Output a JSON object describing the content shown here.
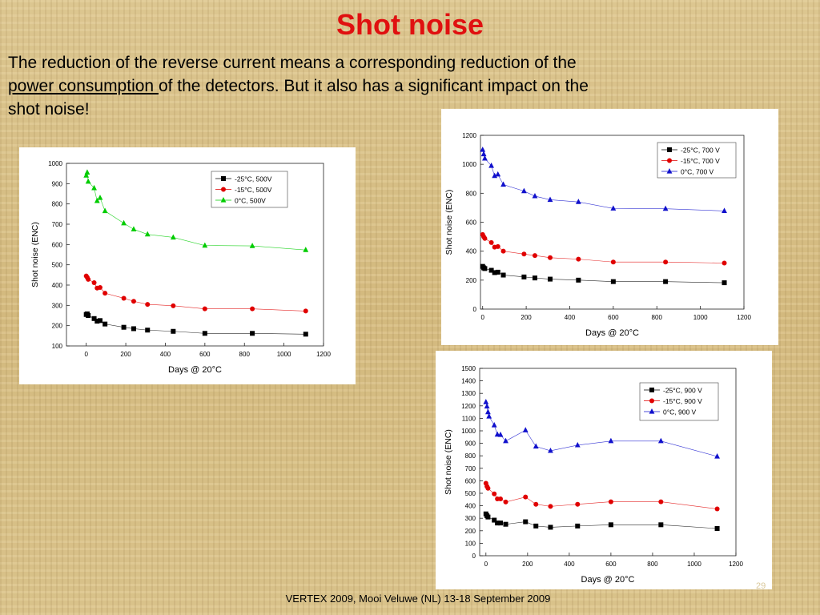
{
  "slide": {
    "title": "Shot noise",
    "intro_part1": "The reduction of the reverse current means a corresponding reduction of the ",
    "intro_link": "power consumption ",
    "intro_part2": "of the detectors. But it also has a significant impact on the shot noise!",
    "footer": "VERTEX 2009, Mooi Veluwe (NL) 13-18 September 2009",
    "page_number": "29"
  },
  "chart_data": [
    {
      "id": "chart-500v",
      "type": "line",
      "xlabel": "Days @ 20°C",
      "ylabel": "Shot noise (ENC)",
      "xlim": [
        -100,
        1200
      ],
      "ylim": [
        100,
        1000
      ],
      "xticks": [
        0,
        200,
        400,
        600,
        800,
        1000,
        1200
      ],
      "yticks": [
        100,
        200,
        300,
        400,
        500,
        600,
        700,
        800,
        900,
        1000
      ],
      "grid": false,
      "legend_position": "top-right",
      "series": [
        {
          "name": "-25°C, 500V",
          "color": "#000000",
          "marker": "square",
          "x": [
            0,
            5,
            10,
            40,
            55,
            70,
            95,
            190,
            240,
            310,
            440,
            600,
            840,
            1110
          ],
          "y": [
            255,
            258,
            250,
            235,
            222,
            225,
            208,
            192,
            185,
            178,
            172,
            162,
            162,
            158
          ]
        },
        {
          "name": "-15°C, 500V",
          "color": "#e00000",
          "marker": "circle",
          "x": [
            0,
            5,
            10,
            40,
            55,
            70,
            95,
            190,
            240,
            310,
            440,
            600,
            840,
            1110
          ],
          "y": [
            445,
            438,
            428,
            412,
            385,
            388,
            360,
            335,
            320,
            305,
            298,
            283,
            283,
            272
          ]
        },
        {
          "name": "0°C, 500V",
          "color": "#00cc00",
          "marker": "triangle",
          "x": [
            0,
            5,
            10,
            40,
            55,
            70,
            95,
            190,
            240,
            310,
            440,
            600,
            840,
            1110
          ],
          "y": [
            940,
            955,
            910,
            878,
            815,
            830,
            765,
            705,
            675,
            650,
            635,
            595,
            593,
            573
          ]
        }
      ]
    },
    {
      "id": "chart-700v",
      "type": "line",
      "xlabel": "Days @ 20°C",
      "ylabel": "Shot noise (ENC)",
      "xlim": [
        -10,
        1200
      ],
      "ylim": [
        0,
        1200
      ],
      "xticks": [
        0,
        200,
        400,
        600,
        800,
        1000,
        1200
      ],
      "yticks": [
        0,
        200,
        400,
        600,
        800,
        1000,
        1200
      ],
      "grid": false,
      "legend_position": "top-right",
      "series": [
        {
          "name": "-25°C, 700 V",
          "color": "#000000",
          "marker": "square",
          "x": [
            0,
            5,
            10,
            40,
            55,
            70,
            95,
            190,
            240,
            310,
            440,
            600,
            840,
            1110
          ],
          "y": [
            295,
            285,
            280,
            268,
            252,
            255,
            235,
            222,
            215,
            207,
            200,
            190,
            190,
            182
          ]
        },
        {
          "name": "-15°C, 700 V",
          "color": "#e00000",
          "marker": "circle",
          "x": [
            0,
            5,
            10,
            40,
            55,
            70,
            95,
            190,
            240,
            310,
            440,
            600,
            840,
            1110
          ],
          "y": [
            515,
            500,
            488,
            460,
            428,
            432,
            400,
            380,
            370,
            355,
            345,
            325,
            325,
            318
          ]
        },
        {
          "name": "0°C, 700 V",
          "color": "#1010cc",
          "marker": "triangle",
          "x": [
            0,
            5,
            10,
            40,
            55,
            70,
            95,
            190,
            240,
            310,
            440,
            600,
            840,
            1110
          ],
          "y": [
            1100,
            1070,
            1040,
            990,
            920,
            930,
            860,
            815,
            780,
            755,
            740,
            695,
            693,
            678
          ]
        }
      ]
    },
    {
      "id": "chart-900v",
      "type": "line",
      "xlabel": "Days @ 20°C",
      "ylabel": "Shot noise (ENC)",
      "xlim": [
        -30,
        1200
      ],
      "ylim": [
        0,
        1500
      ],
      "xticks": [
        0,
        200,
        400,
        600,
        800,
        1000,
        1200
      ],
      "yticks": [
        0,
        100,
        200,
        300,
        400,
        500,
        600,
        700,
        800,
        900,
        1000,
        1100,
        1200,
        1300,
        1400,
        1500
      ],
      "grid": false,
      "legend_position": "top-right",
      "series": [
        {
          "name": "-25°C, 900 V",
          "color": "#000000",
          "marker": "square",
          "x": [
            0,
            5,
            10,
            40,
            55,
            70,
            95,
            190,
            240,
            310,
            440,
            600,
            840,
            1110
          ],
          "y": [
            335,
            320,
            310,
            285,
            262,
            262,
            252,
            272,
            238,
            228,
            238,
            248,
            248,
            218
          ]
        },
        {
          "name": "-15°C, 900 V",
          "color": "#e00000",
          "marker": "circle",
          "x": [
            0,
            5,
            10,
            40,
            55,
            70,
            95,
            190,
            240,
            310,
            440,
            600,
            840,
            1110
          ],
          "y": [
            580,
            555,
            540,
            495,
            455,
            455,
            430,
            470,
            412,
            395,
            412,
            432,
            432,
            375
          ]
        },
        {
          "name": "0°C, 900 V",
          "color": "#1010cc",
          "marker": "triangle",
          "x": [
            0,
            5,
            10,
            15,
            40,
            55,
            70,
            95,
            190,
            240,
            310,
            440,
            600,
            840,
            1110
          ],
          "y": [
            1230,
            1195,
            1150,
            1115,
            1045,
            970,
            968,
            918,
            1005,
            875,
            840,
            885,
            918,
            918,
            795
          ]
        }
      ]
    }
  ]
}
